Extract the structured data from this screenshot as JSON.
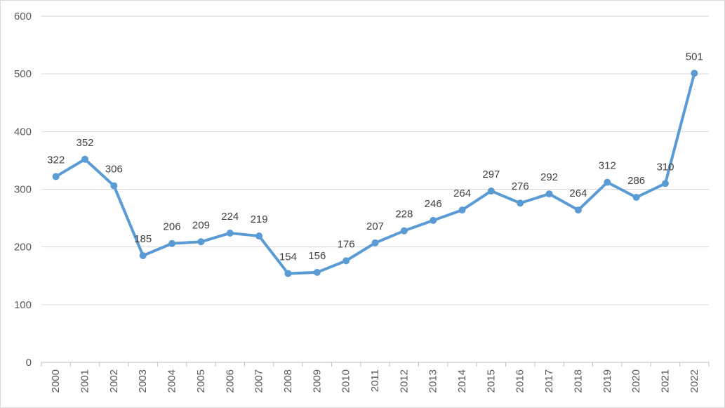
{
  "chart_data": {
    "type": "line",
    "title": "",
    "xlabel": "",
    "ylabel": "",
    "categories": [
      "2000",
      "2001",
      "2002",
      "2003",
      "2004",
      "2005",
      "2006",
      "2007",
      "2008",
      "2009",
      "2010",
      "2011",
      "2012",
      "2013",
      "2014",
      "2015",
      "2016",
      "2017",
      "2018",
      "2019",
      "2020",
      "2021",
      "2022"
    ],
    "series": [
      {
        "values": [
          322,
          352,
          306,
          185,
          206,
          209,
          224,
          219,
          154,
          156,
          176,
          207,
          228,
          246,
          264,
          297,
          276,
          292,
          264,
          312,
          286,
          310,
          501
        ]
      }
    ],
    "ylim": [
      0,
      600
    ],
    "yticks": [
      0,
      100,
      200,
      300,
      400,
      500,
      600
    ],
    "grid": "horizontal",
    "legend": "none",
    "data_labels": true,
    "x_tick_label_rotation": "vertical",
    "colors": {
      "line": "#5b9bd5",
      "grid": "#d9d9d9",
      "axis": "#bfbfbf",
      "text": "#595959"
    }
  }
}
